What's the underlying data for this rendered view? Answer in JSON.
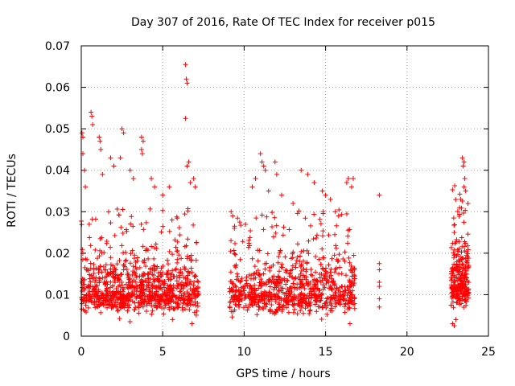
{
  "chart_data": {
    "type": "scatter",
    "title": "Day 307 of 2016, Rate Of TEC Index for receiver p015",
    "xlabel": "GPS time / hours",
    "ylabel": "ROTI / TECUs",
    "xlim": [
      0,
      25
    ],
    "ylim": [
      0,
      0.07
    ],
    "xticks": [
      "0",
      "5",
      "10",
      "15",
      "20",
      "25"
    ],
    "yticks": [
      "0",
      "0.01",
      "0.02",
      "0.03",
      "0.04",
      "0.05",
      "0.06",
      "0.07"
    ],
    "grid": true,
    "marker": "+",
    "color": "#ff0000",
    "series": [
      {
        "name": "ROTI",
        "segments": [
          {
            "start": 0.0,
            "end": 7.2,
            "base": 0.01,
            "spread": 0.008,
            "count": 900
          },
          {
            "start": 9.1,
            "end": 16.8,
            "base": 0.01,
            "spread": 0.008,
            "count": 800
          },
          {
            "start": 22.7,
            "end": 23.8,
            "base": 0.012,
            "spread": 0.01,
            "count": 260
          }
        ],
        "points": [
          {
            "x": 0.05,
            "y": 0.049
          },
          {
            "x": 0.1,
            "y": 0.048
          },
          {
            "x": 0.1,
            "y": 0.044
          },
          {
            "x": 0.2,
            "y": 0.04
          },
          {
            "x": 0.25,
            "y": 0.036
          },
          {
            "x": 0.6,
            "y": 0.054
          },
          {
            "x": 0.65,
            "y": 0.053
          },
          {
            "x": 0.7,
            "y": 0.051
          },
          {
            "x": 1.1,
            "y": 0.048
          },
          {
            "x": 1.15,
            "y": 0.047
          },
          {
            "x": 1.2,
            "y": 0.045
          },
          {
            "x": 1.3,
            "y": 0.039
          },
          {
            "x": 1.8,
            "y": 0.043
          },
          {
            "x": 2.0,
            "y": 0.041
          },
          {
            "x": 2.5,
            "y": 0.05
          },
          {
            "x": 2.6,
            "y": 0.049
          },
          {
            "x": 2.4,
            "y": 0.043
          },
          {
            "x": 3.0,
            "y": 0.04
          },
          {
            "x": 3.2,
            "y": 0.038
          },
          {
            "x": 3.7,
            "y": 0.048
          },
          {
            "x": 3.8,
            "y": 0.047
          },
          {
            "x": 3.7,
            "y": 0.045
          },
          {
            "x": 3.75,
            "y": 0.044
          },
          {
            "x": 4.3,
            "y": 0.038
          },
          {
            "x": 4.5,
            "y": 0.036
          },
          {
            "x": 5.0,
            "y": 0.034
          },
          {
            "x": 5.4,
            "y": 0.036
          },
          {
            "x": 6.4,
            "y": 0.0655
          },
          {
            "x": 6.45,
            "y": 0.062
          },
          {
            "x": 6.5,
            "y": 0.061
          },
          {
            "x": 6.4,
            "y": 0.0525
          },
          {
            "x": 6.5,
            "y": 0.041
          },
          {
            "x": 6.6,
            "y": 0.042
          },
          {
            "x": 6.7,
            "y": 0.037
          },
          {
            "x": 6.9,
            "y": 0.038
          },
          {
            "x": 7.0,
            "y": 0.036
          },
          {
            "x": 5.6,
            "y": 0.004
          },
          {
            "x": 6.8,
            "y": 0.003
          },
          {
            "x": 3.0,
            "y": 0.0035
          },
          {
            "x": 9.2,
            "y": 0.03
          },
          {
            "x": 9.3,
            "y": 0.029
          },
          {
            "x": 9.4,
            "y": 0.026
          },
          {
            "x": 10.5,
            "y": 0.036
          },
          {
            "x": 10.7,
            "y": 0.038
          },
          {
            "x": 11.0,
            "y": 0.044
          },
          {
            "x": 11.1,
            "y": 0.042
          },
          {
            "x": 11.2,
            "y": 0.041
          },
          {
            "x": 11.3,
            "y": 0.04
          },
          {
            "x": 11.5,
            "y": 0.035
          },
          {
            "x": 11.9,
            "y": 0.042
          },
          {
            "x": 12.0,
            "y": 0.039
          },
          {
            "x": 12.3,
            "y": 0.034
          },
          {
            "x": 13.0,
            "y": 0.032
          },
          {
            "x": 13.5,
            "y": 0.04
          },
          {
            "x": 13.9,
            "y": 0.039
          },
          {
            "x": 14.3,
            "y": 0.037
          },
          {
            "x": 14.8,
            "y": 0.035
          },
          {
            "x": 15.0,
            "y": 0.034
          },
          {
            "x": 15.3,
            "y": 0.033
          },
          {
            "x": 15.6,
            "y": 0.03
          },
          {
            "x": 15.8,
            "y": 0.029
          },
          {
            "x": 16.3,
            "y": 0.037
          },
          {
            "x": 16.4,
            "y": 0.038
          },
          {
            "x": 16.7,
            "y": 0.038
          },
          {
            "x": 16.6,
            "y": 0.036
          },
          {
            "x": 16.5,
            "y": 0.003
          },
          {
            "x": 18.3,
            "y": 0.034
          },
          {
            "x": 18.3,
            "y": 0.0175
          },
          {
            "x": 18.3,
            "y": 0.016
          },
          {
            "x": 18.3,
            "y": 0.013
          },
          {
            "x": 18.3,
            "y": 0.012
          },
          {
            "x": 18.3,
            "y": 0.009
          },
          {
            "x": 18.3,
            "y": 0.007
          },
          {
            "x": 23.4,
            "y": 0.043
          },
          {
            "x": 23.5,
            "y": 0.042
          },
          {
            "x": 23.45,
            "y": 0.041
          },
          {
            "x": 23.55,
            "y": 0.038
          },
          {
            "x": 23.5,
            "y": 0.036
          },
          {
            "x": 23.6,
            "y": 0.035
          },
          {
            "x": 23.3,
            "y": 0.033
          },
          {
            "x": 22.9,
            "y": 0.025
          },
          {
            "x": 22.8,
            "y": 0.003
          },
          {
            "x": 22.9,
            "y": 0.0025
          },
          {
            "x": 23.0,
            "y": 0.004
          }
        ]
      }
    ]
  }
}
